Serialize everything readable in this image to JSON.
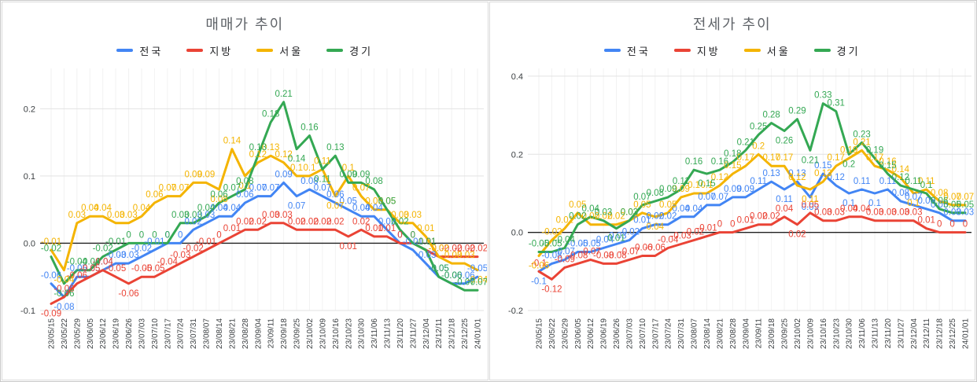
{
  "window": {
    "background": "#ffffff",
    "border_color": "#c9c9c9"
  },
  "theme": {
    "grid_color": "#e2e2e2",
    "minor_grid_color": "#f2f2f2",
    "zero_axis_color": "#212121",
    "axis_text_color": "#3c4043",
    "title_color": "#5f6368",
    "legend_text_color": "#202124"
  },
  "chart_data": [
    {
      "type": "line",
      "title": "매매가 추이",
      "xlabel": "",
      "ylabel": "",
      "legend_position": "top",
      "grid": true,
      "data_labels": true,
      "ylim": [
        -0.1,
        0.26
      ],
      "yticks": [
        0.2,
        0.1,
        0,
        -0.1
      ],
      "ytick_labels": [
        "0.2",
        "0.1",
        "0.0",
        "-0.1"
      ],
      "categories": [
        "23/05/15",
        "23/05/22",
        "23/05/29",
        "23/06/05",
        "23/06/12",
        "23/06/19",
        "23/06/26",
        "23/07/03",
        "23/07/10",
        "23/07/17",
        "23/07/24",
        "23/07/31",
        "23/08/07",
        "23/08/14",
        "23/08/21",
        "23/08/28",
        "23/09/04",
        "23/09/11",
        "23/09/18",
        "23/09/25",
        "23/10/02",
        "23/10/09",
        "23/10/16",
        "23/10/23",
        "23/10/30",
        "23/11/06",
        "23/11/13",
        "23/11/20",
        "23/11/27",
        "23/12/04",
        "23/12/11",
        "23/12/18",
        "23/12/25",
        "24/01/01"
      ],
      "series": [
        {
          "name": "전국",
          "color": "#4285f4",
          "values": [
            -0.06,
            -0.08,
            -0.05,
            -0.05,
            -0.04,
            -0.03,
            -0.03,
            -0.02,
            -0.01,
            0,
            0,
            0.02,
            0.03,
            0.04,
            0.04,
            0.06,
            0.07,
            0.07,
            0.09,
            0.07,
            0.08,
            0.07,
            0.06,
            0.05,
            0.04,
            0.04,
            0.02,
            0,
            -0.01,
            -0.03,
            -0.05,
            -0.06,
            -0.06,
            -0.05
          ]
        },
        {
          "name": "지방",
          "color": "#ea4335",
          "values": [
            -0.09,
            -0.08,
            -0.06,
            -0.05,
            -0.04,
            -0.05,
            -0.06,
            -0.05,
            -0.05,
            -0.04,
            -0.03,
            -0.02,
            -0.01,
            0,
            0.01,
            0.02,
            0.02,
            0.03,
            0.03,
            0.02,
            0.02,
            0.02,
            0.02,
            0.01,
            0.02,
            0.01,
            0.01,
            0,
            0,
            -0.01,
            -0.02,
            -0.02,
            -0.02,
            -0.02
          ]
        },
        {
          "name": "서울",
          "color": "#f4b400",
          "values": [
            -0.01,
            -0.04,
            0.03,
            0.04,
            0.04,
            0.03,
            0.03,
            0.04,
            0.06,
            0.07,
            0.07,
            0.09,
            0.09,
            0.08,
            0.14,
            0.1,
            0.12,
            0.13,
            0.12,
            0.1,
            0.1,
            0.11,
            0.07,
            0.1,
            0.07,
            0.05,
            0.05,
            0.03,
            0.03,
            0.01,
            -0.02,
            -0.03,
            -0.03,
            -0.04
          ]
        },
        {
          "name": "경기",
          "color": "#34a853",
          "values": [
            -0.02,
            -0.06,
            -0.04,
            -0.04,
            -0.02,
            -0.01,
            0,
            0,
            0,
            0,
            0.03,
            0.03,
            0.04,
            0.06,
            0.07,
            0.08,
            0.13,
            0.18,
            0.21,
            0.14,
            0.16,
            0.11,
            0.13,
            0.09,
            0.09,
            0.08,
            0.05,
            0.02,
            0,
            -0.01,
            -0.05,
            -0.06,
            -0.07,
            -0.07
          ]
        }
      ]
    },
    {
      "type": "line",
      "title": "전세가 추이",
      "xlabel": "",
      "ylabel": "",
      "legend_position": "top",
      "grid": true,
      "data_labels": true,
      "ylim": [
        -0.2,
        0.42
      ],
      "yticks": [
        0.4,
        0.2,
        0,
        -0.2
      ],
      "ytick_labels": [
        "0.4",
        "0.2",
        "0.0",
        "-0.2"
      ],
      "categories": [
        "23/05/15",
        "23/05/22",
        "23/05/29",
        "23/06/05",
        "23/06/12",
        "23/06/19",
        "23/06/26",
        "23/07/03",
        "23/07/10",
        "23/07/17",
        "23/07/24",
        "23/07/31",
        "23/08/07",
        "23/08/14",
        "23/08/21",
        "23/08/28",
        "23/09/04",
        "23/09/11",
        "23/09/18",
        "23/09/25",
        "23/10/02",
        "23/10/09",
        "23/10/16",
        "23/10/23",
        "23/10/30",
        "23/11/06",
        "23/11/13",
        "23/11/20",
        "23/11/27",
        "23/12/04",
        "23/12/11",
        "23/12/18",
        "23/12/25",
        "24/01/01"
      ],
      "series": [
        {
          "name": "전국",
          "color": "#4285f4",
          "values": [
            -0.1,
            -0.08,
            -0.07,
            -0.05,
            -0.05,
            -0.04,
            -0.03,
            -0.02,
            0.01,
            0.02,
            0.02,
            0.04,
            0.04,
            0.07,
            0.07,
            0.09,
            0.09,
            0.11,
            0.13,
            0.11,
            0.13,
            0.09,
            0.15,
            0.12,
            0.1,
            0.11,
            0.1,
            0.11,
            0.08,
            0.07,
            0.06,
            0.05,
            0.03,
            0.03
          ]
        },
        {
          "name": "지방",
          "color": "#ea4335",
          "values": [
            -0.1,
            -0.12,
            -0.09,
            -0.08,
            -0.07,
            -0.08,
            -0.08,
            -0.07,
            -0.06,
            -0.06,
            -0.04,
            -0.03,
            -0.02,
            -0.01,
            0,
            0,
            0.01,
            0.02,
            0.02,
            0.04,
            0.02,
            0.05,
            0.03,
            0.03,
            0.04,
            0.04,
            0.03,
            0.03,
            0.03,
            0.03,
            0.01,
            0,
            0,
            0
          ]
        },
        {
          "name": "서울",
          "color": "#f4b400",
          "values": [
            -0.06,
            -0.02,
            0.01,
            0.05,
            0.02,
            0.02,
            0.02,
            0.03,
            0.05,
            0.04,
            0.05,
            0.09,
            0.1,
            0.1,
            0.12,
            0.15,
            0.17,
            0.2,
            0.17,
            0.17,
            0.12,
            0.11,
            0.13,
            0.17,
            0.19,
            0.21,
            0.17,
            0.16,
            0.14,
            0.1,
            0.11,
            0.08,
            0.07,
            0.07
          ]
        },
        {
          "name": "경기",
          "color": "#34a853",
          "values": [
            -0.05,
            -0.05,
            -0.04,
            0.02,
            0.04,
            0.03,
            0.01,
            0.03,
            0.07,
            0.08,
            0.09,
            0.11,
            0.16,
            0.15,
            0.16,
            0.18,
            0.21,
            0.25,
            0.28,
            0.26,
            0.29,
            0.21,
            0.33,
            0.31,
            0.2,
            0.23,
            0.19,
            0.15,
            0.12,
            0.11,
            0.1,
            0.06,
            0.05,
            0.05
          ]
        }
      ]
    }
  ]
}
